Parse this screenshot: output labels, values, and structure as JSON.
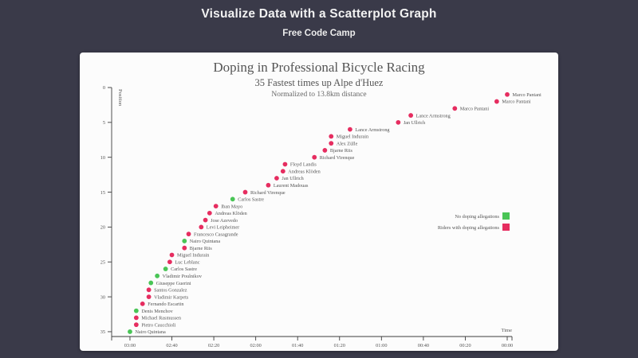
{
  "page": {
    "title": "Visualize Data with a Scatterplot Graph",
    "subtitle": "Free Code Camp",
    "background_color": "#3a3a49",
    "card_color": "#fcfcfc"
  },
  "chart_data": {
    "type": "scatter",
    "title": "Doping in Professional Bicycle Racing",
    "subtitle": "35 Fastest times up Alpe d'Huez",
    "note": "Normalized to 13.8km distance",
    "xlabel": "Time",
    "ylabel": "Position",
    "x_unit": "time behind fastest (mm:ss), descending left to right",
    "x_ticks": [
      "03:00",
      "02:40",
      "02:20",
      "02:00",
      "01:40",
      "01:20",
      "01:00",
      "00:40",
      "00:20",
      "00:00"
    ],
    "y_ticks": [
      0,
      5,
      10,
      15,
      20,
      25,
      30,
      35
    ],
    "ylim": [
      0,
      35
    ],
    "grid": false,
    "legend_position": "right-middle",
    "legend": [
      {
        "label": "No doping allegations",
        "color": "#49c556"
      },
      {
        "label": "Riders with doping allegations",
        "color": "#e62d60"
      }
    ],
    "colors": {
      "doping": "#e62d60",
      "no_doping": "#49c556"
    },
    "points": [
      {
        "place": 1,
        "name": "Marco Pantani",
        "seconds_behind": 0,
        "doping": true
      },
      {
        "place": 2,
        "name": "Marco Pantani",
        "seconds_behind": 5,
        "doping": true
      },
      {
        "place": 3,
        "name": "Marco Pantani",
        "seconds_behind": 25,
        "doping": true
      },
      {
        "place": 4,
        "name": "Lance Armstrong",
        "seconds_behind": 46,
        "doping": true
      },
      {
        "place": 5,
        "name": "Jan Ullrich",
        "seconds_behind": 52,
        "doping": true
      },
      {
        "place": 6,
        "name": "Lance Armstrong",
        "seconds_behind": 75,
        "doping": true
      },
      {
        "place": 7,
        "name": "Miguel Indurain",
        "seconds_behind": 84,
        "doping": true
      },
      {
        "place": 8,
        "name": "Alex Zülle",
        "seconds_behind": 84,
        "doping": true
      },
      {
        "place": 9,
        "name": "Bjarne Riis",
        "seconds_behind": 87,
        "doping": true
      },
      {
        "place": 10,
        "name": "Richard Virenque",
        "seconds_behind": 92,
        "doping": true
      },
      {
        "place": 11,
        "name": "Floyd Landis",
        "seconds_behind": 106,
        "doping": true
      },
      {
        "place": 12,
        "name": "Andreas Klöden",
        "seconds_behind": 107,
        "doping": true
      },
      {
        "place": 13,
        "name": "Jan Ullrich",
        "seconds_behind": 110,
        "doping": true
      },
      {
        "place": 14,
        "name": "Laurent Madouas",
        "seconds_behind": 114,
        "doping": true
      },
      {
        "place": 15,
        "name": "Richard Virenque",
        "seconds_behind": 125,
        "doping": true
      },
      {
        "place": 16,
        "name": "Carlos Sastre",
        "seconds_behind": 131,
        "doping": false
      },
      {
        "place": 17,
        "name": "Iban Mayo",
        "seconds_behind": 139,
        "doping": true
      },
      {
        "place": 18,
        "name": "Andreas Klöden",
        "seconds_behind": 142,
        "doping": true
      },
      {
        "place": 19,
        "name": "Jose Azevedo",
        "seconds_behind": 144,
        "doping": true
      },
      {
        "place": 20,
        "name": "Levi Leipheimer",
        "seconds_behind": 146,
        "doping": true
      },
      {
        "place": 21,
        "name": "Francesco Casagrande",
        "seconds_behind": 152,
        "doping": true
      },
      {
        "place": 22,
        "name": "Nairo Quintana",
        "seconds_behind": 154,
        "doping": false
      },
      {
        "place": 23,
        "name": "Bjarne Riis",
        "seconds_behind": 154,
        "doping": true
      },
      {
        "place": 24,
        "name": "Miguel Indurain",
        "seconds_behind": 160,
        "doping": true
      },
      {
        "place": 25,
        "name": "Luc Leblanc",
        "seconds_behind": 161,
        "doping": true
      },
      {
        "place": 26,
        "name": "Carlos Sastre",
        "seconds_behind": 163,
        "doping": false
      },
      {
        "place": 27,
        "name": "Vladimir Poulnikov",
        "seconds_behind": 167,
        "doping": false
      },
      {
        "place": 28,
        "name": "Giuseppe Guerini",
        "seconds_behind": 170,
        "doping": false
      },
      {
        "place": 29,
        "name": "Santos Gonzalez",
        "seconds_behind": 171,
        "doping": true
      },
      {
        "place": 30,
        "name": "Vladimir Karpets",
        "seconds_behind": 171,
        "doping": true
      },
      {
        "place": 31,
        "name": "Fernando Escartin",
        "seconds_behind": 174,
        "doping": true
      },
      {
        "place": 32,
        "name": "Denis Menchov",
        "seconds_behind": 177,
        "doping": false
      },
      {
        "place": 33,
        "name": "Michael Rasmussen",
        "seconds_behind": 177,
        "doping": true
      },
      {
        "place": 34,
        "name": "Pietro Caucchioli",
        "seconds_behind": 177,
        "doping": true
      },
      {
        "place": 35,
        "name": "Nairo Quintana",
        "seconds_behind": 180,
        "doping": false
      }
    ]
  }
}
